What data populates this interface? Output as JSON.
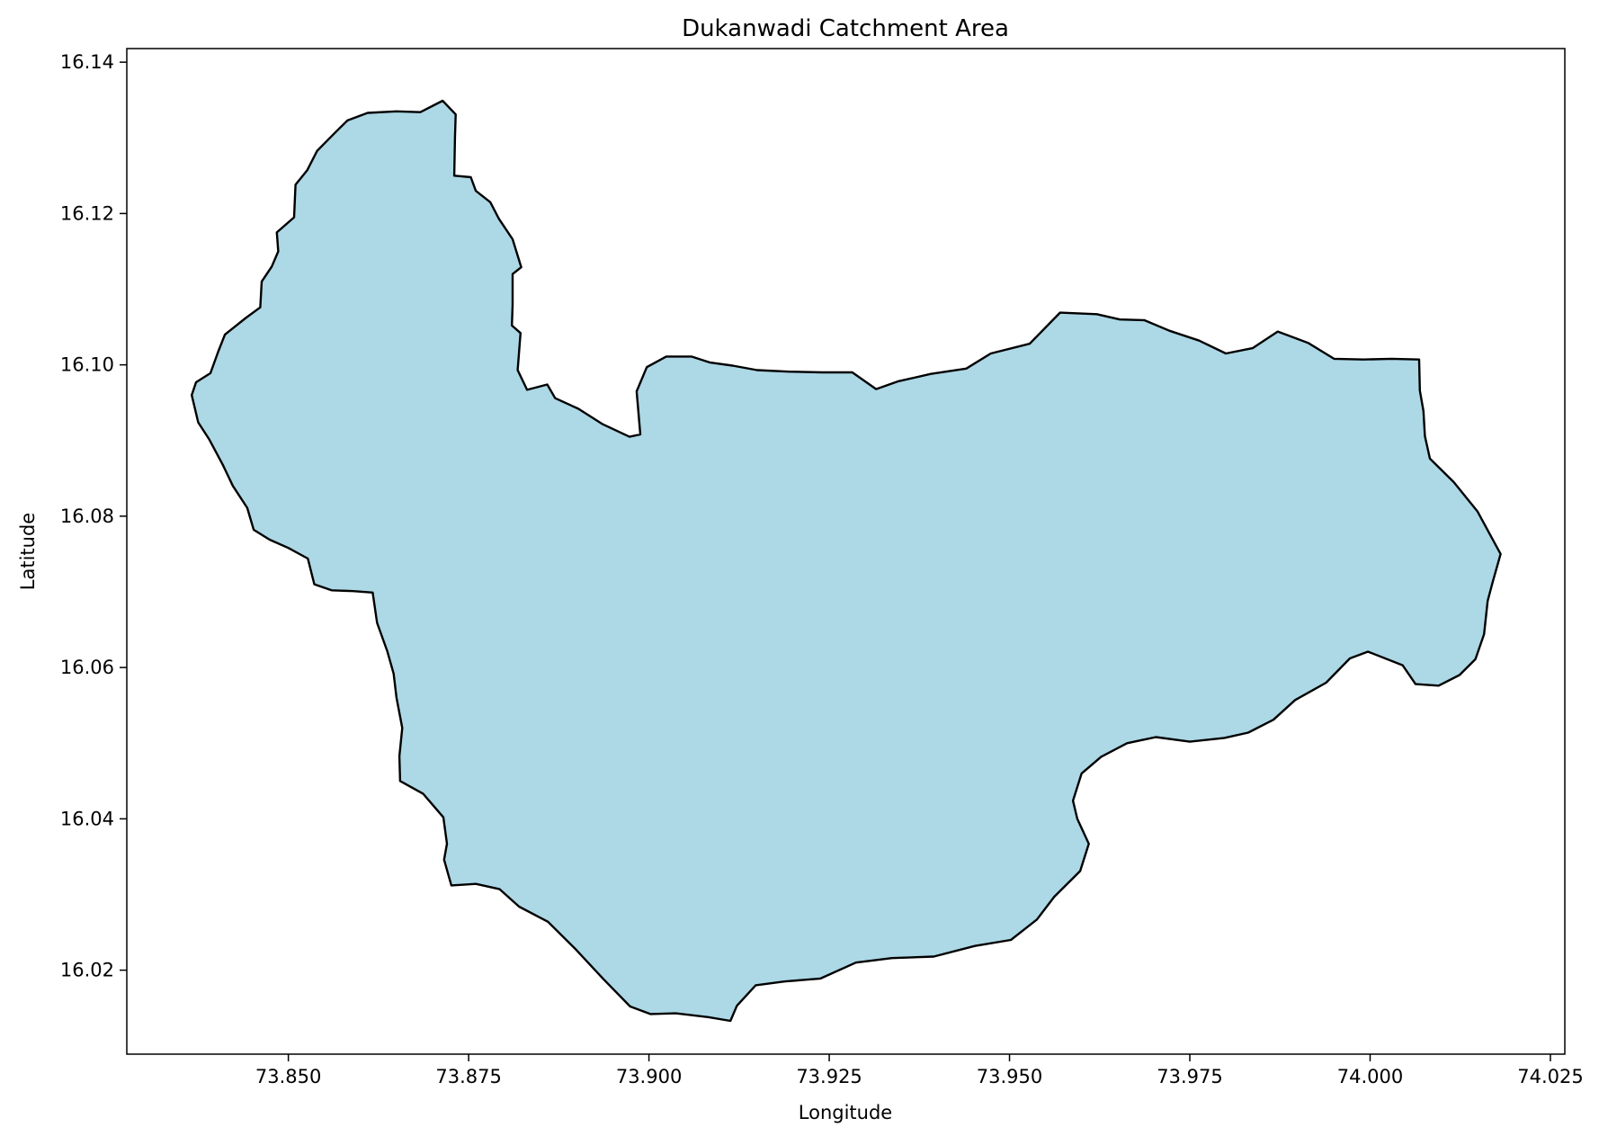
{
  "chart_data": {
    "type": "map",
    "title": "Dukanwadi Catchment Area",
    "xlabel": "Longitude",
    "ylabel": "Latitude",
    "xlim": [
      73.8276,
      74.027
    ],
    "ylim": [
      16.0089,
      16.1418
    ],
    "xticks": [
      {
        "value": 73.85,
        "label": "73.850"
      },
      {
        "value": 73.875,
        "label": "73.875"
      },
      {
        "value": 73.9,
        "label": "73.900"
      },
      {
        "value": 73.925,
        "label": "73.925"
      },
      {
        "value": 73.95,
        "label": "73.950"
      },
      {
        "value": 73.975,
        "label": "73.975"
      },
      {
        "value": 74.0,
        "label": "74.000"
      },
      {
        "value": 74.025,
        "label": "74.025"
      }
    ],
    "yticks": [
      {
        "value": 16.02,
        "label": "16.02"
      },
      {
        "value": 16.04,
        "label": "16.04"
      },
      {
        "value": 16.06,
        "label": "16.06"
      },
      {
        "value": 16.08,
        "label": "16.08"
      },
      {
        "value": 16.1,
        "label": "16.10"
      },
      {
        "value": 16.12,
        "label": "16.12"
      },
      {
        "value": 16.14,
        "label": "16.14"
      }
    ],
    "grid": false,
    "fill_color": "#add8e6",
    "edge_color": "#000000",
    "boundary": [
      [
        73.8714,
        16.1349
      ],
      [
        73.8732,
        16.1331
      ],
      [
        73.8731,
        16.13
      ],
      [
        73.873,
        16.125
      ],
      [
        73.8753,
        16.1248
      ],
      [
        73.876,
        16.123
      ],
      [
        73.878,
        16.1215
      ],
      [
        73.8792,
        16.1193
      ],
      [
        73.8811,
        16.1166
      ],
      [
        73.8823,
        16.1129
      ],
      [
        73.8811,
        16.112
      ],
      [
        73.8811,
        16.108
      ],
      [
        73.881,
        16.1052
      ],
      [
        73.8822,
        16.1042
      ],
      [
        73.8818,
        16.0993
      ],
      [
        73.8831,
        16.0967
      ],
      [
        73.8859,
        16.0974
      ],
      [
        73.887,
        16.0956
      ],
      [
        73.8902,
        16.0942
      ],
      [
        73.8935,
        16.0922
      ],
      [
        73.8973,
        16.0905
      ],
      [
        73.8988,
        16.0908
      ],
      [
        73.8983,
        16.0965
      ],
      [
        73.8997,
        16.0997
      ],
      [
        73.9024,
        16.1011
      ],
      [
        73.9059,
        16.1011
      ],
      [
        73.9085,
        16.1003
      ],
      [
        73.9116,
        16.0999
      ],
      [
        73.915,
        16.0993
      ],
      [
        73.9194,
        16.0991
      ],
      [
        73.924,
        16.099
      ],
      [
        73.9282,
        16.099
      ],
      [
        73.9315,
        16.0968
      ],
      [
        73.9345,
        16.0978
      ],
      [
        73.9391,
        16.0988
      ],
      [
        73.944,
        16.0995
      ],
      [
        73.9474,
        16.1015
      ],
      [
        73.9528,
        16.1028
      ],
      [
        73.957,
        16.1069
      ],
      [
        73.9621,
        16.1067
      ],
      [
        73.9653,
        16.106
      ],
      [
        73.9687,
        16.1059
      ],
      [
        73.9722,
        16.1045
      ],
      [
        73.9763,
        16.1032
      ],
      [
        73.98,
        16.1015
      ],
      [
        73.9837,
        16.1022
      ],
      [
        73.9872,
        16.1044
      ],
      [
        73.9914,
        16.1029
      ],
      [
        73.995,
        16.1008
      ],
      [
        73.9991,
        16.1007
      ],
      [
        74.003,
        16.1008
      ],
      [
        74.0068,
        16.1007
      ],
      [
        74.0069,
        16.0966
      ],
      [
        74.0074,
        16.0939
      ],
      [
        74.0076,
        16.0906
      ],
      [
        74.0083,
        16.0876
      ],
      [
        74.0116,
        16.0845
      ],
      [
        74.0149,
        16.0806
      ],
      [
        74.0165,
        16.0778
      ],
      [
        74.0181,
        16.075
      ],
      [
        74.017,
        16.0713
      ],
      [
        74.0163,
        16.0688
      ],
      [
        74.0158,
        16.0644
      ],
      [
        74.0146,
        16.0611
      ],
      [
        74.0124,
        16.059
      ],
      [
        74.0095,
        16.0576
      ],
      [
        74.0063,
        16.0578
      ],
      [
        74.0045,
        16.0603
      ],
      [
        73.9997,
        16.0621
      ],
      [
        73.9972,
        16.0612
      ],
      [
        73.9939,
        16.058
      ],
      [
        73.9896,
        16.0557
      ],
      [
        73.9866,
        16.0531
      ],
      [
        73.9831,
        16.0514
      ],
      [
        73.9798,
        16.0507
      ],
      [
        73.975,
        16.0502
      ],
      [
        73.9703,
        16.0508
      ],
      [
        73.9663,
        16.05
      ],
      [
        73.9627,
        16.0482
      ],
      [
        73.96,
        16.046
      ],
      [
        73.9588,
        16.0424
      ],
      [
        73.9594,
        16.04
      ],
      [
        73.961,
        16.0367
      ],
      [
        73.9598,
        16.0331
      ],
      [
        73.9562,
        16.0297
      ],
      [
        73.9538,
        16.0267
      ],
      [
        73.9502,
        16.024
      ],
      [
        73.9452,
        16.0232
      ],
      [
        73.9395,
        16.0218
      ],
      [
        73.9337,
        16.0216
      ],
      [
        73.9287,
        16.021
      ],
      [
        73.9238,
        16.0189
      ],
      [
        73.9188,
        16.0185
      ],
      [
        73.9148,
        16.018
      ],
      [
        73.9122,
        16.0153
      ],
      [
        73.9113,
        16.0133
      ],
      [
        73.9082,
        16.0138
      ],
      [
        73.9037,
        16.0143
      ],
      [
        73.9002,
        16.0142
      ],
      [
        73.8974,
        16.0152
      ],
      [
        73.8937,
        16.0188
      ],
      [
        73.8899,
        16.0227
      ],
      [
        73.886,
        16.0264
      ],
      [
        73.882,
        16.0284
      ],
      [
        73.8793,
        16.0307
      ],
      [
        73.876,
        16.0314
      ],
      [
        73.8726,
        16.0312
      ],
      [
        73.8716,
        16.0346
      ],
      [
        73.872,
        16.0367
      ],
      [
        73.8715,
        16.0402
      ],
      [
        73.8687,
        16.0433
      ],
      [
        73.8655,
        16.045
      ],
      [
        73.8654,
        16.0483
      ],
      [
        73.8658,
        16.052
      ],
      [
        73.865,
        16.056
      ],
      [
        73.8646,
        16.0592
      ],
      [
        73.8637,
        16.0622
      ],
      [
        73.8623,
        16.0659
      ],
      [
        73.8617,
        16.0699
      ],
      [
        73.859,
        16.0701
      ],
      [
        73.856,
        16.0702
      ],
      [
        73.8536,
        16.071
      ],
      [
        73.8527,
        16.0744
      ],
      [
        73.85,
        16.0758
      ],
      [
        73.8474,
        16.0769
      ],
      [
        73.8452,
        16.0782
      ],
      [
        73.8443,
        16.0811
      ],
      [
        73.8423,
        16.084
      ],
      [
        73.8409,
        16.0868
      ],
      [
        73.839,
        16.0902
      ],
      [
        73.8375,
        16.0924
      ],
      [
        73.8366,
        16.096
      ],
      [
        73.8372,
        16.0977
      ],
      [
        73.8392,
        16.0989
      ],
      [
        73.8403,
        16.1018
      ],
      [
        73.8412,
        16.104
      ],
      [
        73.8441,
        16.1062
      ],
      [
        73.8461,
        16.1076
      ],
      [
        73.8463,
        16.111
      ],
      [
        73.8477,
        16.113
      ],
      [
        73.8486,
        16.115
      ],
      [
        73.8484,
        16.1175
      ],
      [
        73.8508,
        16.1195
      ],
      [
        73.851,
        16.1238
      ],
      [
        73.8526,
        16.1257
      ],
      [
        73.854,
        16.1283
      ],
      [
        73.8564,
        16.1306
      ],
      [
        73.8582,
        16.1323
      ],
      [
        73.861,
        16.1333
      ],
      [
        73.865,
        16.1335
      ],
      [
        73.8683,
        16.1334
      ],
      [
        73.8714,
        16.1349
      ]
    ]
  }
}
